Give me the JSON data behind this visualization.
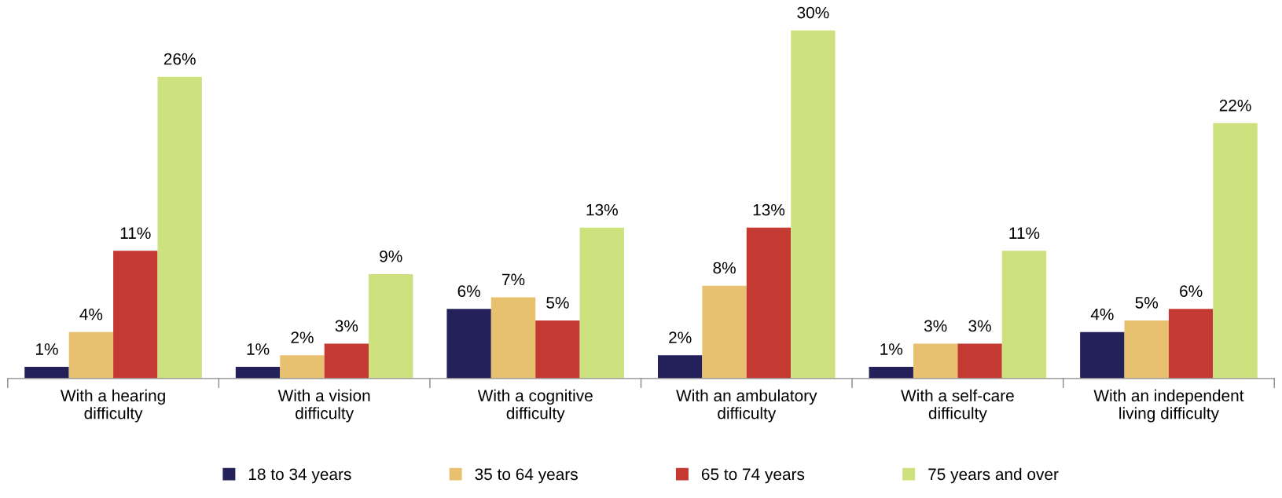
{
  "chart_data": {
    "type": "bar",
    "categories": [
      "With a hearing\ndifficulty",
      "With a vision\ndifficulty",
      "With a cognitive\ndifficulty",
      "With an ambulatory\ndifficulty",
      "With a self-care\ndifficulty",
      "With an independent\nliving difficulty"
    ],
    "series": [
      {
        "name": "18 to 34 years",
        "color": "#24215a",
        "values": [
          1,
          1,
          6,
          2,
          1,
          4
        ],
        "value_labels": [
          "1%",
          "1%",
          "6%",
          "2%",
          "1%",
          "4%"
        ]
      },
      {
        "name": "35 to 64 years",
        "color": "#e8c170",
        "values": [
          4,
          2,
          7,
          8,
          3,
          5
        ],
        "value_labels": [
          "4%",
          "2%",
          "7%",
          "8%",
          "3%",
          "5%"
        ]
      },
      {
        "name": "65 to 74 years",
        "color": "#c43a32",
        "values": [
          11,
          3,
          5,
          13,
          3,
          6
        ],
        "value_labels": [
          "11%",
          "3%",
          "5%",
          "13%",
          "3%",
          "6%"
        ]
      },
      {
        "name": "75 years and over",
        "color": "#cde27f",
        "values": [
          26,
          9,
          13,
          30,
          11,
          22
        ],
        "value_labels": [
          "26%",
          "9%",
          "13%",
          "30%",
          "11%",
          "22%"
        ]
      }
    ],
    "legend": "bottom"
  }
}
